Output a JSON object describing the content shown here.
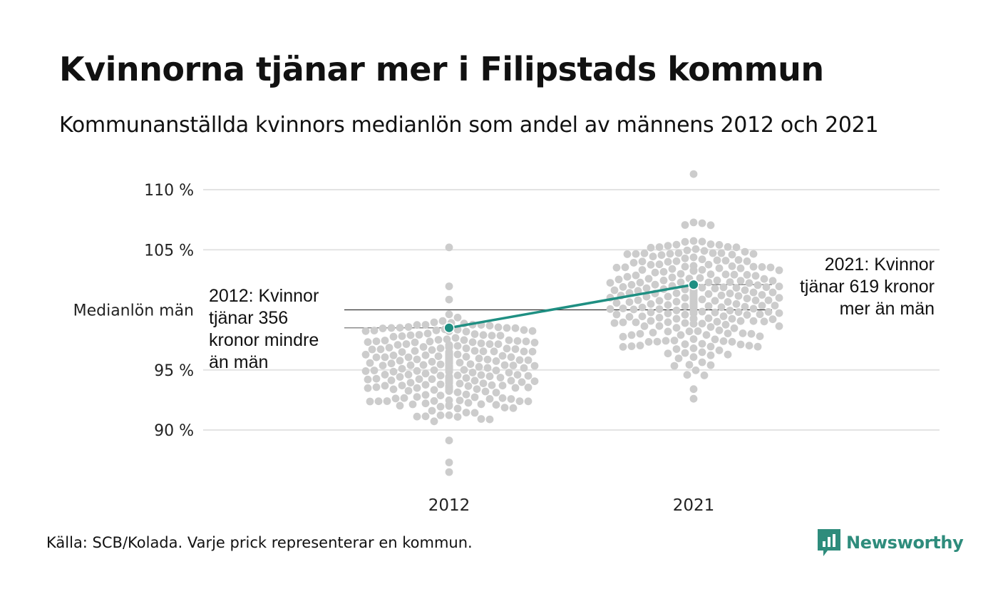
{
  "title": "Kvinnorna tjänar mer i Filipstads kommun",
  "subtitle": "Kommunanställda kvinnors medianlön som andel av männens 2012 och 2021",
  "source": "Källa: SCB/Kolada. Varje prick representerar en kommun.",
  "brand": "Newsworthy",
  "colors": {
    "highlight": "#1f8f82",
    "dots": "#cccccc",
    "grid": "#e3e3e3",
    "brand": "#2e8c7c"
  },
  "chart_data": {
    "type": "scatter",
    "subtype": "beeswarm",
    "categories": [
      "2012",
      "2021"
    ],
    "y_ticks": [
      {
        "value": 90,
        "label": "90 %"
      },
      {
        "value": 95,
        "label": "95 %"
      },
      {
        "value": 100,
        "label": "Medianlön män"
      },
      {
        "value": 105,
        "label": "105 %"
      },
      {
        "value": 110,
        "label": "110 %"
      }
    ],
    "ylim": [
      86,
      111.5
    ],
    "grid": true,
    "reference_line": {
      "value": 100,
      "label": "Medianlön män"
    },
    "distributions": [
      {
        "category": "2012",
        "count": 290,
        "mean": 95.3,
        "sd": 2.4,
        "min": 86.5,
        "max": 105.2
      },
      {
        "category": "2021",
        "count": 290,
        "mean": 101.0,
        "sd": 2.6,
        "min": 92.6,
        "max": 111.3
      }
    ],
    "highlight": {
      "name": "Filipstad",
      "points": [
        {
          "x": "2012",
          "y": 98.5
        },
        {
          "x": "2021",
          "y": 102.1
        }
      ]
    },
    "annotations": [
      {
        "x": "2012",
        "text": "2012: Kvinnor tjänar 356 kronor mindre än män",
        "lines": [
          "2012: Kvinnor",
          "tjänar 356",
          "kronor mindre",
          "än män"
        ]
      },
      {
        "x": "2021",
        "text": "2021: Kvinnor tjänar 619 kronor mer än män",
        "lines": [
          "2021: Kvinnor",
          "tjänar 619 kronor",
          "mer än män"
        ]
      }
    ]
  }
}
